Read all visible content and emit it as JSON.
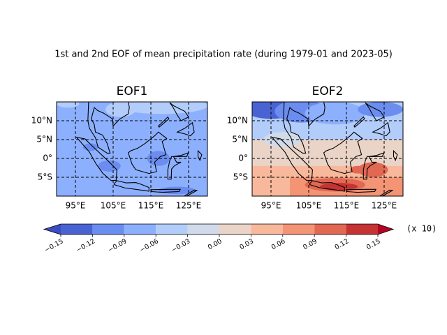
{
  "figure": {
    "title": "1st and 2nd EOF of mean precipitation rate (during 1979-01 and 2023-05)",
    "panels": [
      {
        "title": "EOF1",
        "xlim": [
          90,
          130
        ],
        "ylim": [
          -10,
          15
        ],
        "xticks": [
          {
            "value": 95,
            "label": "95°E"
          },
          {
            "value": 105,
            "label": "105°E"
          },
          {
            "value": 115,
            "label": "115°E"
          },
          {
            "value": 125,
            "label": "125°E"
          }
        ],
        "yticks": [
          {
            "value": 10,
            "label": "10°N"
          },
          {
            "value": 5,
            "label": "5°N"
          },
          {
            "value": 0,
            "label": "0°"
          },
          {
            "value": -5,
            "label": "5°S"
          }
        ]
      },
      {
        "title": "EOF2",
        "xlim": [
          90,
          130
        ],
        "ylim": [
          -10,
          15
        ],
        "xticks": [
          {
            "value": 95,
            "label": "95°E"
          },
          {
            "value": 105,
            "label": "105°E"
          },
          {
            "value": 115,
            "label": "115°E"
          },
          {
            "value": 125,
            "label": "125°E"
          }
        ],
        "yticks": [
          {
            "value": 10,
            "label": "10°N"
          },
          {
            "value": 5,
            "label": "5°N"
          },
          {
            "value": 0,
            "label": "0°"
          },
          {
            "value": -5,
            "label": "5°S"
          }
        ]
      }
    ],
    "colorbar": {
      "ticks": [
        {
          "value": -0.15,
          "label": "−0.15"
        },
        {
          "value": -0.12,
          "label": "−0.12"
        },
        {
          "value": -0.09,
          "label": "−0.09"
        },
        {
          "value": -0.06,
          "label": "−0.06"
        },
        {
          "value": -0.03,
          "label": "−0.03"
        },
        {
          "value": 0,
          "label": "0.00"
        },
        {
          "value": 0.03,
          "label": "0.03"
        },
        {
          "value": 0.06,
          "label": "0.06"
        },
        {
          "value": 0.09,
          "label": "0.09"
        },
        {
          "value": 0.12,
          "label": "0.12"
        },
        {
          "value": 0.15,
          "label": "0.15"
        }
      ],
      "colors": [
        "#4a63d3",
        "#6b8df0",
        "#8db0fe",
        "#b3cdfb",
        "#d1dae9",
        "#ead4c8",
        "#f7b89c",
        "#f39475",
        "#e16852",
        "#c53334"
      ],
      "under_color": "#3b4cc0",
      "over_color": "#b40426",
      "multiplier": "(x 10)"
    }
  }
}
